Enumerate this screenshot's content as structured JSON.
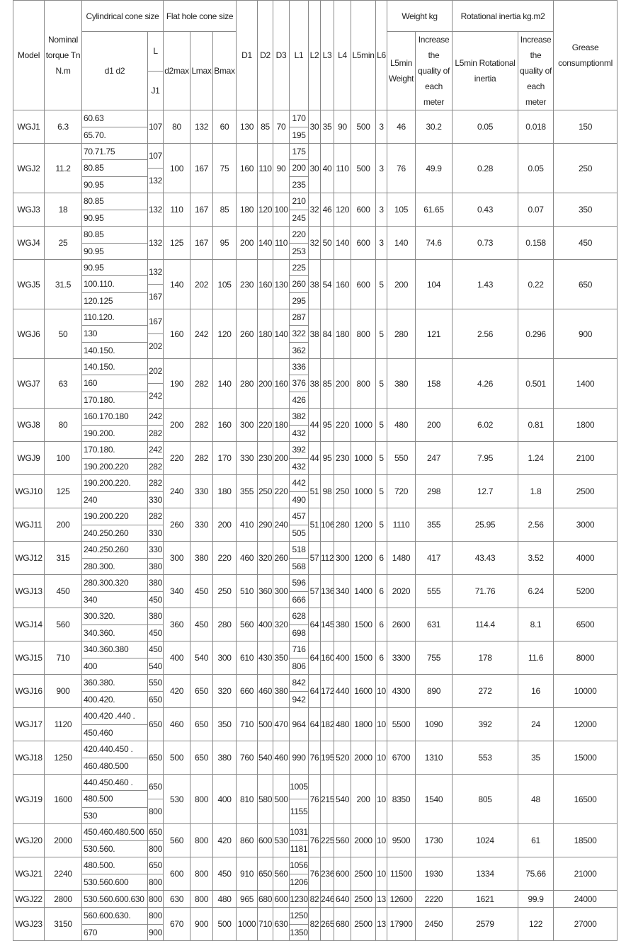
{
  "header": {
    "model": "Model",
    "torque": "Nominal torque Tn N.m",
    "cyl": "Cylindrical cone size",
    "flat": "Flat hole cone size",
    "d1d2": "d1 d2",
    "L": "L",
    "J1": "J1",
    "d2max": "d2max",
    "Lmax": "Lmax",
    "Bmax": "Bmax",
    "D1": "D1",
    "D2": "D2",
    "D3": "D3",
    "L1": "L1",
    "L2": "L2",
    "L3": "L3",
    "L4": "L4",
    "L5min": "L5min",
    "L6": "L6",
    "weight": "Weight kg",
    "weight_l5": "L5min Weight",
    "weight_inc": "Increase the quality of each meter",
    "inertia": "Rotational inertia kg.m2",
    "inertia_l5": "L5min Rotational inertia",
    "inertia_inc": "Increase the quality of each meter",
    "grease": "Grease consumptionml"
  },
  "table": {
    "rows": [
      [
        "WGJ1",
        6.3,
        [
          "60.63",
          "65.70."
        ],
        [
          107
        ],
        80,
        132,
        60,
        130,
        85,
        70,
        [
          170,
          195
        ],
        30,
        35,
        90,
        500,
        3,
        46,
        30.2,
        0.05,
        0.018,
        150
      ],
      [
        "WGJ2",
        11.2,
        [
          "70.71.75",
          "80.85",
          "90.95"
        ],
        [
          107,
          132
        ],
        100,
        167,
        75,
        160,
        110,
        90,
        [
          175,
          200,
          235
        ],
        30,
        40,
        110,
        500,
        3,
        76,
        49.9,
        0.28,
        0.05,
        250
      ],
      [
        "WGJ3",
        18,
        [
          "80.85",
          "90.95"
        ],
        [
          132
        ],
        110,
        167,
        85,
        180,
        120,
        100,
        [
          210,
          245
        ],
        32,
        46,
        120,
        600,
        3,
        105,
        61.65,
        0.43,
        0.07,
        350
      ],
      [
        "WGJ4",
        25,
        [
          "80.85",
          "90.95"
        ],
        [
          132
        ],
        125,
        167,
        95,
        200,
        140,
        110,
        [
          220,
          253
        ],
        32,
        50,
        140,
        600,
        3,
        140,
        74.6,
        0.73,
        0.158,
        450
      ],
      [
        "WGJ5",
        31.5,
        [
          "90.95",
          "100.110.",
          "120.125"
        ],
        [
          132,
          167
        ],
        140,
        202,
        105,
        230,
        160,
        130,
        [
          225,
          260,
          295
        ],
        38,
        54,
        160,
        600,
        5,
        200,
        104,
        1.43,
        0.22,
        650
      ],
      [
        "WGJ6",
        50,
        [
          "110.120.",
          "130",
          "140.150."
        ],
        [
          167,
          202
        ],
        160,
        242,
        120,
        260,
        180,
        140,
        [
          287,
          322,
          362
        ],
        38,
        84,
        180,
        800,
        5,
        280,
        121,
        2.56,
        0.296,
        900
      ],
      [
        "WGJ7",
        63,
        [
          "140.150.",
          "160",
          "170.180."
        ],
        [
          202,
          242
        ],
        190,
        282,
        140,
        280,
        200,
        160,
        [
          336,
          376,
          426
        ],
        38,
        85,
        200,
        800,
        5,
        380,
        158,
        4.26,
        0.501,
        1400
      ],
      [
        "WGJ8",
        80,
        [
          "160.170.180",
          "190.200."
        ],
        [
          242,
          282
        ],
        200,
        282,
        160,
        300,
        220,
        180,
        [
          382,
          432
        ],
        44,
        95,
        220,
        1000,
        5,
        480,
        200,
        6.02,
        0.81,
        1800
      ],
      [
        "WGJ9",
        100,
        [
          "170.180.",
          "190.200.220"
        ],
        [
          242,
          282
        ],
        220,
        282,
        170,
        330,
        230,
        200,
        [
          392,
          432
        ],
        44,
        95,
        230,
        1000,
        5,
        550,
        247,
        7.95,
        1.24,
        2100
      ],
      [
        "WGJ10",
        125,
        [
          "190.200.220.",
          "240"
        ],
        [
          282,
          330
        ],
        240,
        330,
        180,
        355,
        250,
        220,
        [
          442,
          490
        ],
        51,
        98,
        250,
        1000,
        5,
        720,
        298,
        12.7,
        1.8,
        2500
      ],
      [
        "WGJ11",
        200,
        [
          "190.200.220",
          "240.250.260"
        ],
        [
          282,
          330
        ],
        260,
        330,
        200,
        410,
        290,
        240,
        [
          457,
          505
        ],
        51,
        106,
        280,
        1200,
        5,
        1110,
        355,
        25.95,
        2.56,
        3000
      ],
      [
        "WGJ12",
        315,
        [
          "240.250.260",
          "280.300."
        ],
        [
          330,
          380
        ],
        300,
        380,
        220,
        460,
        320,
        260,
        [
          518,
          568
        ],
        57,
        112,
        300,
        1200,
        6,
        1480,
        417,
        43.43,
        3.52,
        4000
      ],
      [
        "WGJ13",
        450,
        [
          "280.300.320",
          "340"
        ],
        [
          380,
          450
        ],
        340,
        450,
        250,
        510,
        360,
        300,
        [
          596,
          666
        ],
        57,
        136,
        340,
        1400,
        6,
        2020,
        555,
        71.76,
        6.24,
        5200
      ],
      [
        "WGJ14",
        560,
        [
          "300.320.",
          "340.360."
        ],
        [
          380,
          450
        ],
        360,
        450,
        280,
        560,
        400,
        320,
        [
          628,
          698
        ],
        64,
        145,
        380,
        1500,
        6,
        2600,
        631,
        114.4,
        8.1,
        6500
      ],
      [
        "WGJ15",
        710,
        [
          "340.360.380",
          "400"
        ],
        [
          450,
          540
        ],
        400,
        540,
        300,
        610,
        430,
        350,
        [
          716,
          806
        ],
        64,
        160,
        400,
        1500,
        6,
        3300,
        755,
        178,
        11.6,
        8000
      ],
      [
        "WGJ16",
        900,
        [
          "360.380.",
          "400.420."
        ],
        [
          550,
          650
        ],
        420,
        650,
        320,
        660,
        460,
        380,
        [
          842,
          942
        ],
        64,
        172,
        440,
        1600,
        10,
        4300,
        890,
        272,
        16,
        10000
      ],
      [
        "WGJ17",
        1120,
        [
          "400.420 .440 .",
          "450.460"
        ],
        [
          650
        ],
        460,
        650,
        350,
        710,
        500,
        470,
        [
          964
        ],
        64,
        182,
        480,
        1800,
        10,
        5500,
        1090,
        392,
        24,
        12000
      ],
      [
        "WGJ18",
        1250,
        [
          "420.440.450 .",
          "460.480.500"
        ],
        [
          650
        ],
        500,
        650,
        380,
        760,
        540,
        460,
        [
          990
        ],
        76,
        195,
        520,
        2000,
        10,
        6700,
        1310,
        553,
        35,
        15000
      ],
      [
        "WGJ19",
        1600,
        [
          "440.450.460 .",
          "480.500",
          "530"
        ],
        [
          650,
          800
        ],
        530,
        800,
        400,
        810,
        580,
        500,
        [
          1005,
          1155
        ],
        76,
        215,
        540,
        200,
        10,
        8350,
        1540,
        805,
        48,
        16500
      ],
      [
        "WGJ20",
        2000,
        [
          "450.460.480.500",
          "530.560."
        ],
        [
          650,
          800
        ],
        560,
        800,
        420,
        860,
        600,
        530,
        [
          1031,
          1181
        ],
        76,
        225,
        560,
        2000,
        10,
        9500,
        1730,
        1024,
        61,
        18500
      ],
      [
        "WGJ21",
        2240,
        [
          "480.500.",
          "530.560.600"
        ],
        [
          650,
          800
        ],
        600,
        800,
        450,
        910,
        650,
        560,
        [
          1056,
          1206
        ],
        76,
        236,
        600,
        2500,
        10,
        11500,
        1930,
        1334,
        75.66,
        21000
      ],
      [
        "WGJ22",
        2800,
        [
          "530.560.600.630"
        ],
        [
          800
        ],
        630,
        800,
        480,
        965,
        680,
        600,
        [
          1230
        ],
        82,
        246,
        640,
        2500,
        13,
        12600,
        2220,
        1621,
        99.9,
        24000
      ],
      [
        "WGJ23",
        3150,
        [
          "560.600.630.",
          "670"
        ],
        [
          800,
          900
        ],
        670,
        900,
        500,
        1000,
        710,
        630,
        [
          1250,
          1350
        ],
        82,
        265,
        680,
        2500,
        13,
        17900,
        2450,
        2579,
        122,
        27000
      ]
    ]
  }
}
